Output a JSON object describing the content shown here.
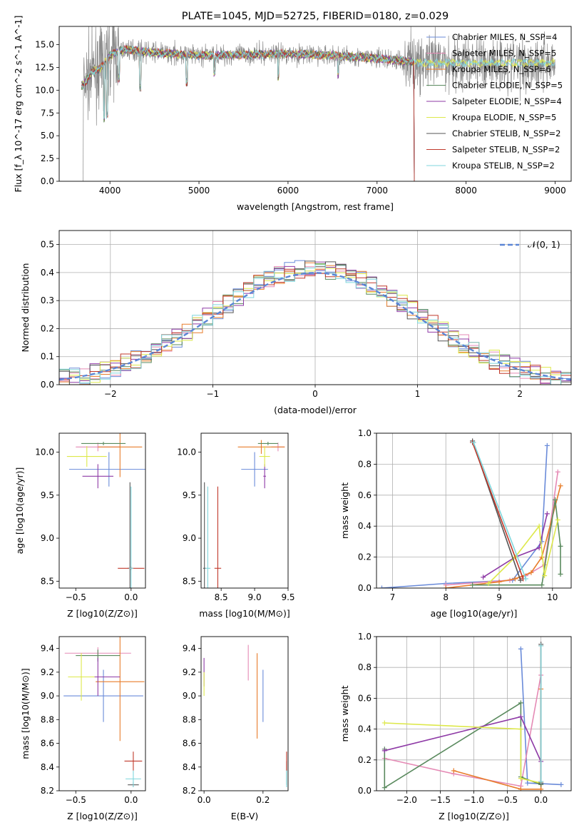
{
  "chart_data": [
    {
      "id": "spectrum",
      "type": "line",
      "title": "PLATE=1045, MJD=52725, FIBERID=0180, z=0.029",
      "xlabel": "wavelength [Angstrom, rest frame]",
      "ylabel": "Flux [f_λ 10^-17 erg cm^-2 s^-1 A^-1]",
      "xlim": [
        3430,
        9180
      ],
      "ylim": [
        0,
        17
      ],
      "xticks": [
        4000,
        5000,
        6000,
        7000,
        8000,
        9000
      ],
      "yticks": [
        0.0,
        2.5,
        5.0,
        7.5,
        10.0,
        12.5,
        15.0
      ],
      "grid": false,
      "legend_position": "top-right",
      "legend": [
        {
          "label": "Chabrier MILES, N_SSP=4",
          "color": "#6a8bd9"
        },
        {
          "label": "Salpeter MILES, N_SSP=5",
          "color": "#e58ab5"
        },
        {
          "label": "Kroupa MILES, N_SSP=6",
          "color": "#e87d2a"
        },
        {
          "label": "Chabrier ELODIE, N_SSP=5",
          "color": "#5a8a5e"
        },
        {
          "label": "Salpeter ELODIE, N_SSP=4",
          "color": "#8e3aa6"
        },
        {
          "label": "Kroupa ELODIE, N_SSP=5",
          "color": "#dde84a"
        },
        {
          "label": "Chabrier STELIB, N_SSP=2",
          "color": "#555555"
        },
        {
          "label": "Salpeter STELIB, N_SSP=2",
          "color": "#c0392b"
        },
        {
          "label": "Kroupa STELIB, N_SSP=2",
          "color": "#7fd6dc"
        }
      ],
      "data_series": {
        "name": "data",
        "color": "#888888",
        "x_range": [
          3690,
          9000
        ]
      },
      "model_continuum": {
        "x": [
          3700,
          3800,
          3900,
          4000,
          4100,
          4200,
          4400,
          4700,
          5000,
          5500,
          6000,
          6500,
          7000,
          7200,
          7420
        ],
        "y": [
          10.5,
          12.0,
          12.5,
          13.8,
          14.3,
          14.5,
          14.2,
          14.0,
          13.8,
          13.9,
          14.0,
          13.8,
          13.5,
          13.3,
          13.1
        ]
      }
    },
    {
      "id": "residuals",
      "type": "histogram",
      "xlabel": "(data-model)/error",
      "ylabel": "Normed distribution",
      "xlim": [
        -2.5,
        2.5
      ],
      "ylim": [
        0,
        0.55
      ],
      "xticks": [
        -2,
        -1,
        0,
        1,
        2
      ],
      "yticks": [
        0.0,
        0.1,
        0.2,
        0.3,
        0.4,
        0.5
      ],
      "grid": true,
      "legend_position": "top-right",
      "reference_curve": {
        "label": "𝒩(0, 1)",
        "color": "#5b86d6",
        "style": "dashed",
        "mu": 0,
        "sigma": 1
      },
      "bin_width": 0.1
    },
    {
      "id": "age-vs-z",
      "type": "errorbar",
      "xlabel": "Z [log10(Z/Z⊙)]",
      "ylabel": "age  [log10(age/yr)]",
      "xlim": [
        -0.65,
        0.13
      ],
      "ylim": [
        8.42,
        10.22
      ],
      "xticks": [
        -0.5,
        0.0
      ],
      "xtick_labels": [
        "−0.5",
        "0.0"
      ],
      "yticks": [
        8.5,
        9.0,
        9.5,
        10.0
      ],
      "points": [
        {
          "series": "Chabrier MILES",
          "x": -0.2,
          "y": 9.8,
          "xerr": 0.36,
          "yerr": 0.2
        },
        {
          "series": "Salpeter MILES",
          "x": -0.3,
          "y": 10.06,
          "xerr": 0.2,
          "yerr": 0.05
        },
        {
          "series": "Kroupa MILES",
          "x": -0.1,
          "y": 10.06,
          "xerr": 0.2,
          "yerr": 0.35
        },
        {
          "series": "Chabrier ELODIE",
          "x": -0.25,
          "y": 10.1,
          "xerr": 0.2,
          "yerr": 0.02
        },
        {
          "series": "Salpeter ELODIE",
          "x": -0.3,
          "y": 9.72,
          "xerr": 0.14,
          "yerr": 0.14
        },
        {
          "series": "Kroupa ELODIE",
          "x": -0.4,
          "y": 9.95,
          "xerr": 0.18,
          "yerr": 0.12
        },
        {
          "series": "Chabrier STELIB",
          "x": -0.01,
          "y": 8.65,
          "xerr": 0.02,
          "yerr": 1.0
        },
        {
          "series": "Salpeter STELIB",
          "x": 0.0,
          "y": 8.65,
          "xerr": 0.12,
          "yerr": 0.02
        },
        {
          "series": "Kroupa STELIB",
          "x": 0.0,
          "y": 8.65,
          "xerr": 0.02,
          "yerr": 0.95
        }
      ]
    },
    {
      "id": "age-vs-mass",
      "type": "errorbar",
      "xlabel": "mass [log10(M/M⊙)]",
      "ylabel": "",
      "xlim": [
        8.2,
        9.5
      ],
      "ylim": [
        8.42,
        10.22
      ],
      "xticks": [
        8.5,
        9.0,
        9.5
      ],
      "yticks": [
        8.5,
        9.0,
        9.5,
        10.0
      ],
      "points": [
        {
          "series": "Chabrier MILES",
          "x": 9.0,
          "y": 9.8,
          "xerr": 0.2,
          "yerr": 0.2
        },
        {
          "series": "Salpeter MILES",
          "x": 9.35,
          "y": 10.06,
          "xerr": 0.1,
          "yerr": 0.05
        },
        {
          "series": "Kroupa MILES",
          "x": 9.1,
          "y": 10.06,
          "xerr": 0.35,
          "yerr": 0.08
        },
        {
          "series": "Chabrier ELODIE",
          "x": 9.2,
          "y": 10.1,
          "xerr": 0.15,
          "yerr": 0.02
        },
        {
          "series": "Salpeter ELODIE",
          "x": 9.15,
          "y": 9.72,
          "xerr": 0.02,
          "yerr": 0.14
        },
        {
          "series": "Kroupa ELODIE",
          "x": 9.15,
          "y": 9.95,
          "xerr": 0.08,
          "yerr": 0.12
        },
        {
          "series": "Chabrier STELIB",
          "x": 8.25,
          "y": 8.65,
          "xerr": 0.02,
          "yerr": 1.0
        },
        {
          "series": "Salpeter STELIB",
          "x": 8.45,
          "y": 8.65,
          "xerr": 0.05,
          "yerr": 0.95
        },
        {
          "series": "Kroupa STELIB",
          "x": 8.3,
          "y": 8.65,
          "xerr": 0.04,
          "yerr": 0.95
        }
      ]
    },
    {
      "id": "weight-vs-age",
      "type": "line",
      "xlabel": "age  [log10(age/yr)]",
      "ylabel": "mass weight",
      "xlim": [
        6.7,
        10.35
      ],
      "ylim": [
        0,
        1.0
      ],
      "xticks": [
        7,
        8,
        9,
        10
      ],
      "yticks": [
        0.0,
        0.2,
        0.4,
        0.6,
        0.8,
        1.0
      ],
      "grid": true,
      "series": [
        {
          "name": "Chabrier MILES",
          "points": [
            [
              6.8,
              0.0
            ],
            [
              8.0,
              0.03
            ],
            [
              9.25,
              0.05
            ],
            [
              9.8,
              0.3
            ],
            [
              9.9,
              0.92
            ]
          ]
        },
        {
          "name": "Salpeter MILES",
          "points": [
            [
              8.0,
              0.02
            ],
            [
              9.2,
              0.05
            ],
            [
              9.5,
              0.08
            ],
            [
              9.85,
              0.15
            ],
            [
              10.1,
              0.75
            ]
          ]
        },
        {
          "name": "Kroupa MILES",
          "points": [
            [
              8.0,
              0.0
            ],
            [
              9.0,
              0.04
            ],
            [
              9.3,
              0.06
            ],
            [
              9.6,
              0.1
            ],
            [
              9.8,
              0.2
            ],
            [
              10.15,
              0.66
            ]
          ]
        },
        {
          "name": "Chabrier ELODIE",
          "points": [
            [
              8.5,
              0.02
            ],
            [
              9.8,
              0.02
            ],
            [
              10.05,
              0.57
            ],
            [
              10.15,
              0.27
            ],
            [
              10.15,
              0.09
            ]
          ]
        },
        {
          "name": "Salpeter ELODIE",
          "points": [
            [
              8.7,
              0.07
            ],
            [
              9.3,
              0.2
            ],
            [
              9.75,
              0.26
            ],
            [
              9.9,
              0.48
            ]
          ]
        },
        {
          "name": "Kroupa ELODIE",
          "points": [
            [
              8.8,
              0.03
            ],
            [
              9.3,
              0.2
            ],
            [
              9.75,
              0.4
            ],
            [
              9.85,
              0.08
            ],
            [
              10.1,
              0.44
            ]
          ]
        },
        {
          "name": "Chabrier STELIB",
          "points": [
            [
              8.5,
              0.95
            ],
            [
              9.4,
              0.05
            ]
          ]
        },
        {
          "name": "Salpeter STELIB",
          "points": [
            [
              8.5,
              0.94
            ],
            [
              9.45,
              0.06
            ]
          ]
        },
        {
          "name": "Kroupa STELIB",
          "points": [
            [
              8.52,
              0.94
            ],
            [
              9.5,
              0.06
            ]
          ]
        }
      ]
    },
    {
      "id": "mass-vs-z",
      "type": "errorbar",
      "xlabel": "Z [log10(Z/Z⊙)]",
      "ylabel": "mass [log10(M/M⊙)]",
      "xlim": [
        -0.65,
        0.13
      ],
      "ylim": [
        8.2,
        9.5
      ],
      "xticks": [
        -0.5,
        0.0
      ],
      "xtick_labels": [
        "−0.5",
        "0.0"
      ],
      "yticks": [
        8.2,
        8.4,
        8.6,
        8.8,
        9.0,
        9.2,
        9.4
      ],
      "points": [
        {
          "series": "Chabrier MILES",
          "x": -0.25,
          "y": 9.0,
          "xerr": 0.36,
          "yerr": 0.22
        },
        {
          "series": "Salpeter MILES",
          "x": -0.3,
          "y": 9.36,
          "xerr": 0.3,
          "yerr": 0.05
        },
        {
          "series": "Kroupa MILES",
          "x": -0.1,
          "y": 9.12,
          "xerr": 0.22,
          "yerr": 0.5
        },
        {
          "series": "Chabrier ELODIE",
          "x": -0.3,
          "y": 9.34,
          "xerr": 0.2,
          "yerr": 0.05
        },
        {
          "series": "Salpeter ELODIE",
          "x": -0.3,
          "y": 9.16,
          "xerr": 0.2,
          "yerr": 0.16
        },
        {
          "series": "Kroupa ELODIE",
          "x": -0.45,
          "y": 9.16,
          "xerr": 0.12,
          "yerr": 0.2
        },
        {
          "series": "Chabrier STELIB",
          "x": 0.02,
          "y": 8.25,
          "xerr": 0.05,
          "yerr": 0.02
        },
        {
          "series": "Salpeter STELIB",
          "x": 0.02,
          "y": 8.45,
          "xerr": 0.08,
          "yerr": 0.08
        },
        {
          "series": "Kroupa STELIB",
          "x": 0.02,
          "y": 8.3,
          "xerr": 0.07,
          "yerr": 0.07
        }
      ]
    },
    {
      "id": "mass-vs-ebv",
      "type": "errorbar",
      "xlabel": "E(B-V)",
      "ylabel": "",
      "xlim": [
        -0.01,
        0.285
      ],
      "ylim": [
        8.2,
        9.5
      ],
      "xticks": [
        0.0,
        0.2
      ],
      "yticks": [
        8.2,
        8.4,
        8.6,
        8.8,
        9.0,
        9.2,
        9.4
      ],
      "points": [
        {
          "series": "Chabrier MILES",
          "x": 0.2,
          "y": 9.0,
          "xerr": 0.0,
          "yerr": 0.22
        },
        {
          "series": "Salpeter MILES",
          "x": 0.15,
          "y": 9.28,
          "xerr": 0.0,
          "yerr": 0.15
        },
        {
          "series": "Kroupa MILES",
          "x": 0.18,
          "y": 9.0,
          "xerr": 0.0,
          "yerr": 0.36
        },
        {
          "series": "Salpeter ELODIE",
          "x": 0.0,
          "y": 9.2,
          "xerr": 0.0,
          "yerr": 0.12
        },
        {
          "series": "Kroupa ELODIE",
          "x": 0.0,
          "y": 9.1,
          "xerr": 0.0,
          "yerr": 0.1
        },
        {
          "series": "Chabrier STELIB",
          "x": 0.28,
          "y": 8.35,
          "xerr": 0.0,
          "yerr": 0.1
        },
        {
          "series": "Salpeter STELIB",
          "x": 0.28,
          "y": 8.45,
          "xerr": 0.0,
          "yerr": 0.08
        },
        {
          "series": "Kroupa STELIB",
          "x": 0.28,
          "y": 8.3,
          "xerr": 0.0,
          "yerr": 0.07
        }
      ]
    },
    {
      "id": "weight-vs-z",
      "type": "line",
      "xlabel": "Z [log10(Z/Z⊙)]",
      "ylabel": "mass weight",
      "xlim": [
        -2.45,
        0.45
      ],
      "ylim": [
        0,
        1.0
      ],
      "xticks": [
        -2.0,
        -1.5,
        -1.0,
        -0.5,
        0.0
      ],
      "xtick_labels": [
        "−2.0",
        "−1.5",
        "−1.0",
        "−0.5",
        "0.0"
      ],
      "yticks": [
        0.0,
        0.2,
        0.4,
        0.6,
        0.8,
        1.0
      ],
      "grid": true,
      "series": [
        {
          "name": "Chabrier MILES",
          "points": [
            [
              -0.3,
              0.92
            ],
            [
              -0.2,
              0.05
            ],
            [
              0.3,
              0.04
            ]
          ]
        },
        {
          "name": "Salpeter MILES",
          "points": [
            [
              -2.33,
              0.21
            ],
            [
              -1.3,
              0.11
            ],
            [
              -0.3,
              0.03
            ],
            [
              0.0,
              0.75
            ]
          ]
        },
        {
          "name": "Kroupa MILES",
          "points": [
            [
              -1.3,
              0.13
            ],
            [
              -0.3,
              0.01
            ],
            [
              0.0,
              0.01
            ],
            [
              0.0,
              0.66
            ]
          ]
        },
        {
          "name": "Chabrier ELODIE",
          "points": [
            [
              -2.33,
              0.27
            ],
            [
              -2.33,
              0.02
            ],
            [
              -0.3,
              0.57
            ],
            [
              -0.3,
              0.09
            ],
            [
              0.0,
              0.04
            ]
          ]
        },
        {
          "name": "Salpeter ELODIE",
          "points": [
            [
              -2.33,
              0.26
            ],
            [
              -0.3,
              0.48
            ],
            [
              0.0,
              0.19
            ]
          ]
        },
        {
          "name": "Kroupa ELODIE",
          "points": [
            [
              -2.33,
              0.44
            ],
            [
              -0.3,
              0.4
            ],
            [
              -0.3,
              0.08
            ],
            [
              0.0,
              0.05
            ]
          ]
        },
        {
          "name": "Chabrier STELIB",
          "points": [
            [
              0.0,
              0.95
            ],
            [
              0.0,
              0.05
            ]
          ]
        },
        {
          "name": "Salpeter STELIB",
          "points": [
            [
              0.0,
              0.94
            ],
            [
              0.0,
              0.06
            ]
          ]
        },
        {
          "name": "Kroupa STELIB",
          "points": [
            [
              0.0,
              0.94
            ],
            [
              0.0,
              0.06
            ]
          ]
        }
      ]
    }
  ]
}
